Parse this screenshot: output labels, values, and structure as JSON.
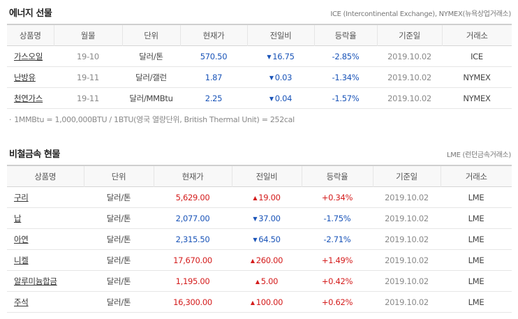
{
  "energy": {
    "title": "에너지 선물",
    "source": "ICE (Intercontinental Exchange), NYMEX(뉴욕상업거래소)",
    "headers": [
      "상품명",
      "월물",
      "단위",
      "현재가",
      "전일비",
      "등락율",
      "기준일",
      "거래소"
    ],
    "rows": [
      {
        "name": "가스오일",
        "month": "19-10",
        "unit": "달러/톤",
        "price": "570.50",
        "dir": "down",
        "change": "16.75",
        "rate": "-2.85%",
        "date": "2019.10.02",
        "exchange": "ICE"
      },
      {
        "name": "난방유",
        "month": "19-11",
        "unit": "달러/갤런",
        "price": "1.87",
        "dir": "down",
        "change": "0.03",
        "rate": "-1.34%",
        "date": "2019.10.02",
        "exchange": "NYMEX"
      },
      {
        "name": "천연가스",
        "month": "19-11",
        "unit": "달러/MMBtu",
        "price": "2.25",
        "dir": "down",
        "change": "0.04",
        "rate": "-1.57%",
        "date": "2019.10.02",
        "exchange": "NYMEX"
      }
    ],
    "note": "1MMBtu = 1,000,000BTU / 1BTU(영국 열량단위, British Thermal Unit) = 252cal"
  },
  "metals": {
    "title": "비철금속 현물",
    "source": "LME (런던금속거래소)",
    "headers": [
      "상품명",
      "단위",
      "현재가",
      "전일비",
      "등락율",
      "기준일",
      "거래소"
    ],
    "rows": [
      {
        "name": "구리",
        "unit": "달러/톤",
        "price": "5,629.00",
        "dir": "up",
        "change": "19.00",
        "rate": "+0.34%",
        "date": "2019.10.02",
        "exchange": "LME"
      },
      {
        "name": "납",
        "unit": "달러/톤",
        "price": "2,077.00",
        "dir": "down",
        "change": "37.00",
        "rate": "-1.75%",
        "date": "2019.10.02",
        "exchange": "LME"
      },
      {
        "name": "아연",
        "unit": "달러/톤",
        "price": "2,315.50",
        "dir": "down",
        "change": "64.50",
        "rate": "-2.71%",
        "date": "2019.10.02",
        "exchange": "LME"
      },
      {
        "name": "니켈",
        "unit": "달러/톤",
        "price": "17,670.00",
        "dir": "up",
        "change": "260.00",
        "rate": "+1.49%",
        "date": "2019.10.02",
        "exchange": "LME"
      },
      {
        "name": "알루미늄합금",
        "unit": "달러/톤",
        "price": "1,195.00",
        "dir": "up",
        "change": "5.00",
        "rate": "+0.42%",
        "date": "2019.10.02",
        "exchange": "LME"
      },
      {
        "name": "주석",
        "unit": "달러/톤",
        "price": "16,300.00",
        "dir": "up",
        "change": "100.00",
        "rate": "+0.62%",
        "date": "2019.10.02",
        "exchange": "LME"
      }
    ]
  },
  "icons": {
    "up": "▲",
    "down": "▼",
    "bullet": "·"
  },
  "colors": {
    "up": "#d41c1c",
    "down": "#1a54b8",
    "border_top": "#cfcfcf",
    "header_bg": "#f8f8f8"
  }
}
